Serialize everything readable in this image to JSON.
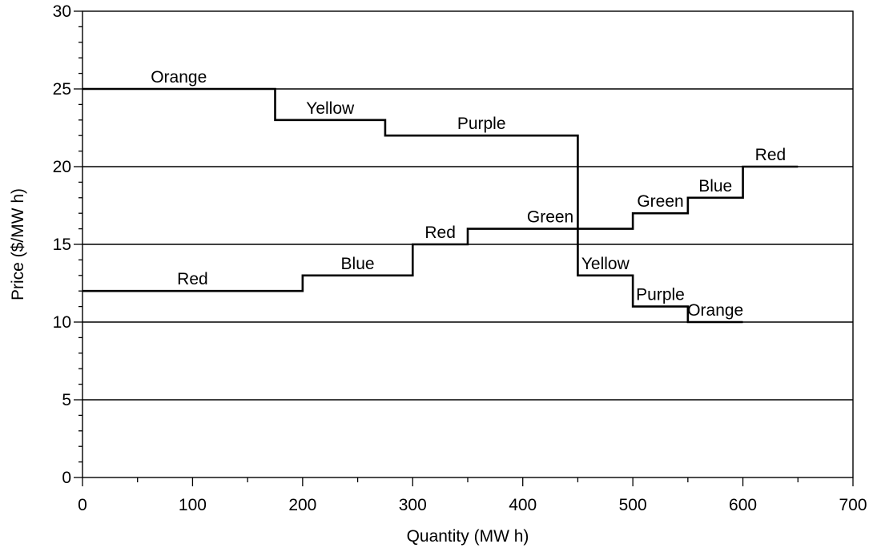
{
  "chart_data": {
    "type": "line",
    "step": true,
    "xlabel": "Quantity (MW h)",
    "ylabel": "Price ($/MW h)",
    "xlim": [
      0,
      700
    ],
    "ylim": [
      0,
      30
    ],
    "x_ticks": [
      0,
      100,
      200,
      300,
      400,
      500,
      600,
      700
    ],
    "y_ticks": [
      0,
      5,
      10,
      15,
      20,
      25,
      30
    ],
    "x_minor_step": 50,
    "y_minor_step": 1,
    "grid": "horizontal at 5, 10, 15, 20, 25",
    "series": [
      {
        "steps": [
          {
            "x0": 0,
            "x1": 175,
            "y": 25,
            "label": "Orange"
          },
          {
            "x0": 175,
            "x1": 275,
            "y": 23,
            "label": "Yellow"
          },
          {
            "x0": 275,
            "x1": 450,
            "y": 22,
            "label": "Purple"
          },
          {
            "x0": 450,
            "x1": 500,
            "y": 13,
            "label": "Yellow"
          },
          {
            "x0": 500,
            "x1": 550,
            "y": 11,
            "label": "Purple"
          },
          {
            "x0": 550,
            "x1": 600,
            "y": 10,
            "label": "Orange"
          }
        ]
      },
      {
        "steps": [
          {
            "x0": 0,
            "x1": 200,
            "y": 12,
            "label": "Red"
          },
          {
            "x0": 200,
            "x1": 300,
            "y": 13,
            "label": "Blue"
          },
          {
            "x0": 300,
            "x1": 350,
            "y": 15,
            "label": "Red"
          },
          {
            "x0": 350,
            "x1": 500,
            "y": 16,
            "label": "Green"
          },
          {
            "x0": 500,
            "x1": 550,
            "y": 17,
            "label": "Green"
          },
          {
            "x0": 550,
            "x1": 600,
            "y": 18,
            "label": "Blue"
          },
          {
            "x0": 600,
            "x1": 650,
            "y": 20,
            "label": "Red"
          }
        ]
      }
    ]
  }
}
